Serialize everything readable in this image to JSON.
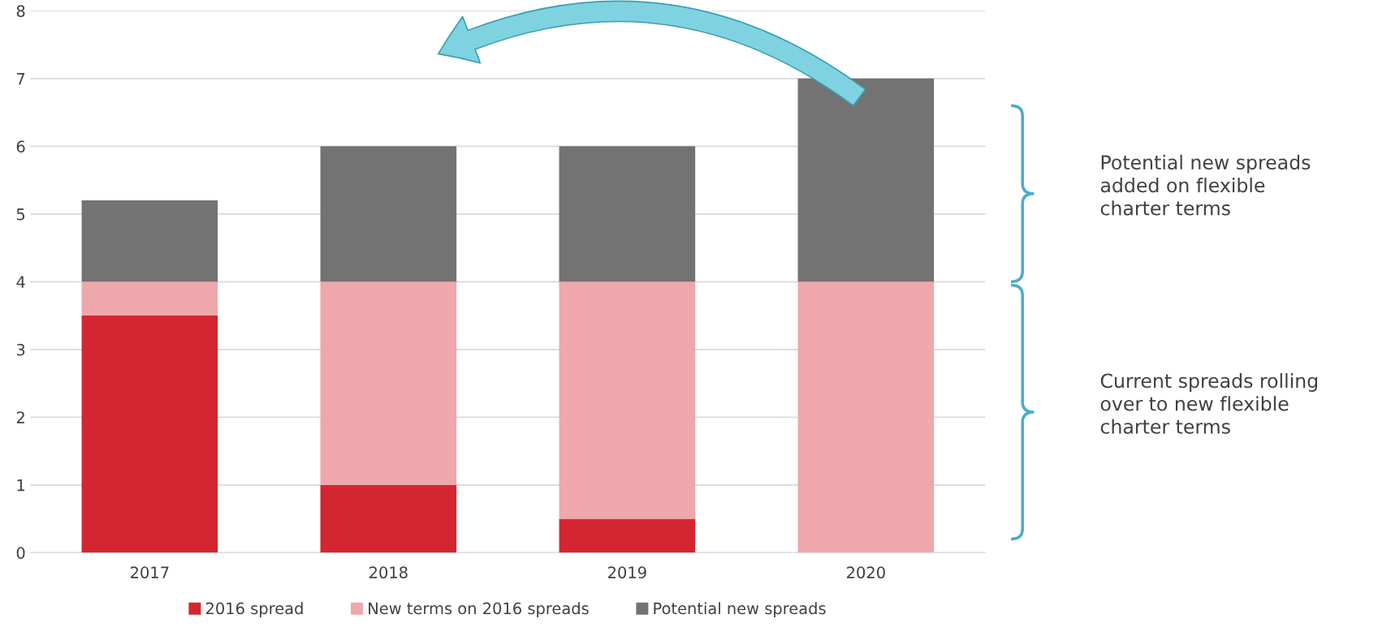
{
  "chart_data": {
    "type": "bar",
    "stacked": true,
    "categories": [
      "2017",
      "2018",
      "2019",
      "2020"
    ],
    "series": [
      {
        "name": "2016 spread",
        "color": "#d32630",
        "values": [
          3.5,
          1,
          0.5,
          0
        ]
      },
      {
        "name": "New terms on 2016 spreads",
        "color": "#eea7aa",
        "values": [
          0.5,
          3,
          3.5,
          4
        ]
      },
      {
        "name": "Potential new spreads",
        "color": "#737373",
        "values": [
          1.2,
          2,
          2,
          3
        ]
      }
    ],
    "ylim": [
      0,
      8
    ],
    "yticks": [
      0,
      1,
      2,
      3,
      4,
      5,
      6,
      7,
      8
    ],
    "grid": "y",
    "legend": "bottom",
    "annotations": [
      "Potential new spreads\nadded on flexible\ncharter terms",
      "Current spreads rolling\nover to new flexible\ncharter terms"
    ]
  }
}
